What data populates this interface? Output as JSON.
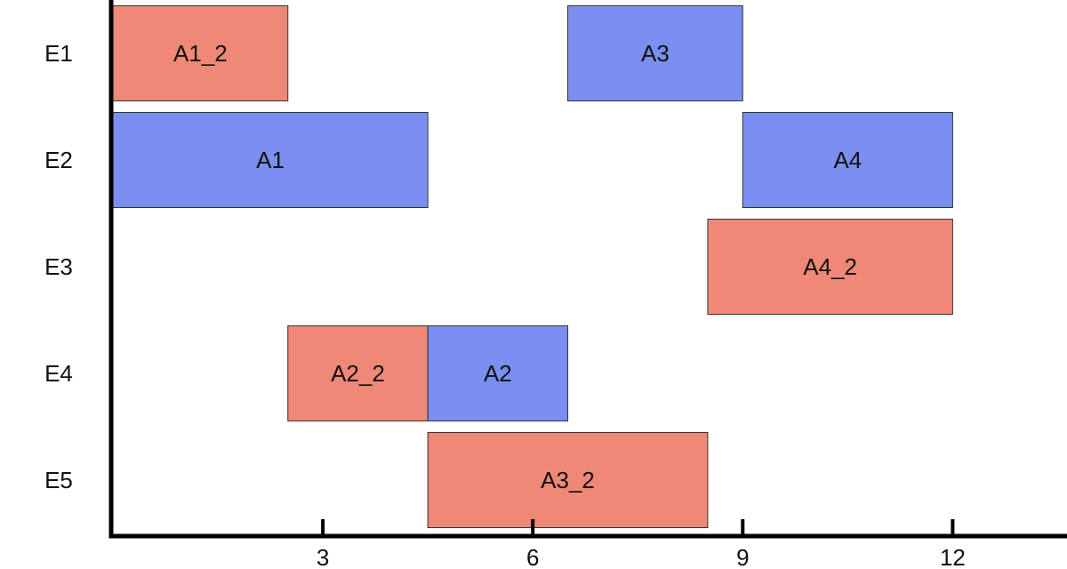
{
  "chart_data": {
    "type": "gantt",
    "title": "",
    "xlabel": "",
    "ylabel": "",
    "xlim": [
      0,
      13.7
    ],
    "x_ticks": [
      3,
      6,
      9,
      12
    ],
    "grid": false,
    "legend": "none",
    "rows": [
      "E1",
      "E2",
      "E3",
      "E4",
      "E5"
    ],
    "colors": {
      "red": "#f08878",
      "blue": "#7a8ff0"
    },
    "tasks": [
      {
        "label": "A1_2",
        "row": "E1",
        "start": 0,
        "end": 2.5,
        "color": "red"
      },
      {
        "label": "A3",
        "row": "E1",
        "start": 6.5,
        "end": 9,
        "color": "blue"
      },
      {
        "label": "A1",
        "row": "E2",
        "start": 0,
        "end": 4.5,
        "color": "blue"
      },
      {
        "label": "A4",
        "row": "E2",
        "start": 9,
        "end": 12,
        "color": "blue"
      },
      {
        "label": "A4_2",
        "row": "E3",
        "start": 8.5,
        "end": 12,
        "color": "red"
      },
      {
        "label": "A2_2",
        "row": "E4",
        "start": 2.5,
        "end": 4.5,
        "color": "red"
      },
      {
        "label": "A2",
        "row": "E4",
        "start": 4.5,
        "end": 6.5,
        "color": "blue"
      },
      {
        "label": "A3_2",
        "row": "E5",
        "start": 4.5,
        "end": 8.5,
        "color": "red"
      }
    ]
  }
}
